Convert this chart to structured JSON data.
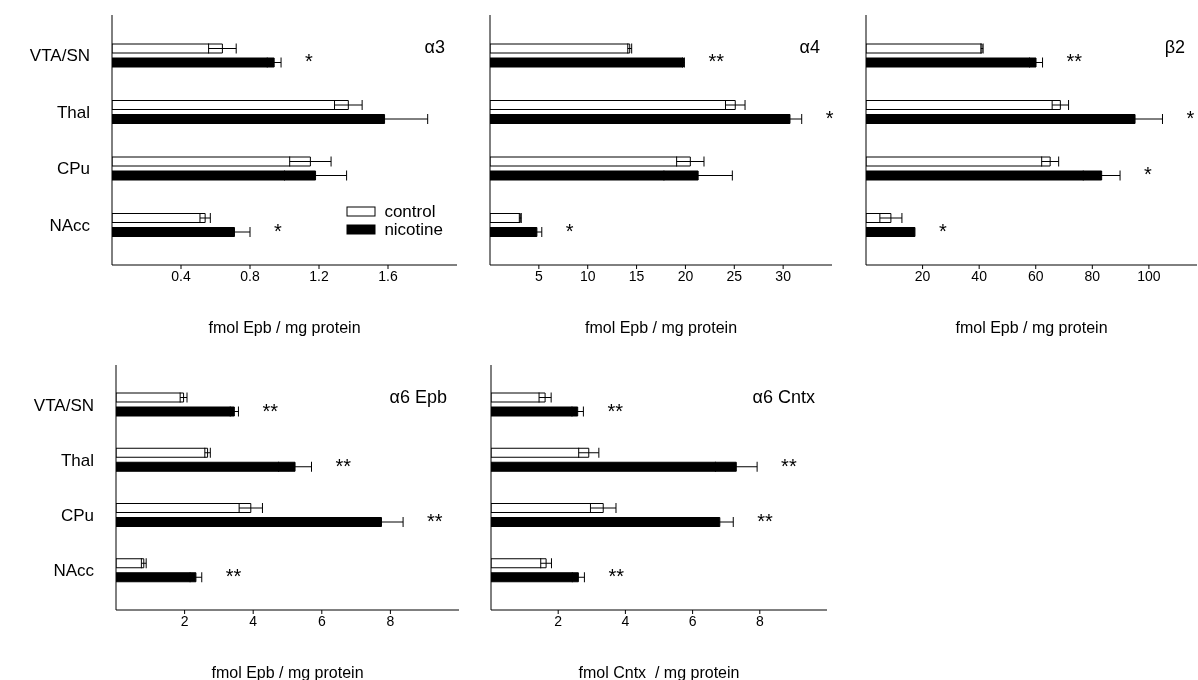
{
  "chart_data": [
    {
      "type": "bar",
      "orientation": "horizontal",
      "title": "α3",
      "xlabel": "fmol Epb / mg protein",
      "categories": [
        "VTA/SN",
        "Thal",
        "CPu",
        "NAcc"
      ],
      "series": [
        {
          "name": "control",
          "color": "#ffffff",
          "values": [
            0.64,
            1.37,
            1.15,
            0.54
          ],
          "errors": [
            0.08,
            0.08,
            0.12,
            0.03
          ]
        },
        {
          "name": "nicotine",
          "color": "#000000",
          "values": [
            0.94,
            1.58,
            1.18,
            0.71
          ],
          "errors": [
            0.04,
            0.25,
            0.18,
            0.09
          ]
        }
      ],
      "xlim": [
        0,
        2.0
      ],
      "xticks": [
        0.4,
        0.8,
        1.2,
        1.6
      ],
      "legend": "bottom right",
      "annotations": [
        {
          "text": "*",
          "x": 0.94,
          "y": "VTA/SN"
        },
        {
          "text": "*",
          "x": 0.71,
          "y": "NAcc"
        }
      ]
    },
    {
      "type": "bar",
      "orientation": "horizontal",
      "title": "α4",
      "xlabel": "fmol Epb / mg protein",
      "categories": [
        "VTA/SN",
        "Thal",
        "CPu",
        "NAcc"
      ],
      "series": [
        {
          "color": "#ffffff",
          "values": [
            14.3,
            25.1,
            20.5,
            3.1
          ],
          "errors": [
            0.2,
            1.0,
            1.4,
            0.1
          ]
        },
        {
          "color": "#000000",
          "values": [
            19.8,
            30.7,
            21.3,
            4.8
          ],
          "errors": [
            0.1,
            1.2,
            3.5,
            0.5
          ]
        }
      ],
      "xlim": [
        0,
        35
      ],
      "xticks": [
        5,
        10,
        15,
        20,
        25,
        30
      ],
      "tick_labels": "x",
      "annotations": [
        {
          "text": "**",
          "x": 19.8,
          "y": "VTA/SN"
        },
        {
          "text": "*",
          "x": 30.7,
          "y": "Thal"
        },
        {
          "text": "*",
          "x": 4.8,
          "y": "NAcc"
        }
      ]
    },
    {
      "type": "bar",
      "orientation": "horizontal",
      "title": "β2",
      "xlabel": "fmol Epb / mg protein",
      "categories": [
        "VTA/SN",
        "Thal",
        "CPu",
        "NAcc"
      ],
      "series": [
        {
          "color": "#ffffff",
          "values": [
            41,
            68.7,
            65.1,
            8.8
          ],
          "errors": [
            0.4,
            2.9,
            3.0,
            3.9
          ]
        },
        {
          "color": "#000000",
          "values": [
            60.1,
            95.1,
            83.3,
            17.3
          ],
          "errors": [
            2.3,
            9.7,
            6.5,
            null
          ]
        }
      ],
      "xlim": [
        0,
        117
      ],
      "xticks": [
        20,
        40,
        60,
        80,
        100
      ],
      "tick_labels": "x",
      "annotations": [
        {
          "text": "**",
          "x": 60.1,
          "y": "VTA/SN"
        },
        {
          "text": "*",
          "x": 95.1,
          "y": "Thal"
        },
        {
          "text": "*",
          "x": 83.3,
          "y": "CPu"
        },
        {
          "text": "*",
          "x": 17.3,
          "y": "NAcc"
        }
      ]
    },
    {
      "type": "bar",
      "orientation": "horizontal",
      "title": "α6 Epb",
      "xlabel": "fmol Epb / mg protein",
      "categories": [
        "VTA/SN",
        "Thal",
        "CPu",
        "NAcc"
      ],
      "series": [
        {
          "color": "#ffffff",
          "values": [
            1.97,
            2.67,
            3.93,
            0.81
          ],
          "errors": [
            0.1,
            0.08,
            0.34,
            0.07
          ]
        },
        {
          "color": "#000000",
          "values": [
            3.45,
            5.22,
            7.74,
            2.33
          ],
          "errors": [
            0.12,
            0.48,
            0.63,
            0.17
          ]
        }
      ],
      "xlim": [
        0,
        10
      ],
      "xticks": [
        2,
        4,
        6,
        8
      ],
      "annotations": [
        {
          "text": "**",
          "x": 3.45,
          "y": "VTA/SN"
        },
        {
          "text": "**",
          "x": 5.22,
          "y": "Thal"
        },
        {
          "text": "**",
          "x": 7.74,
          "y": "CPu"
        },
        {
          "text": "**",
          "x": 2.33,
          "y": "NAcc"
        }
      ]
    },
    {
      "type": "bar",
      "orientation": "horizontal",
      "title": "α6 Cntx",
      "xlabel": "fmol Cntx  / mg protein",
      "categories": [
        "VTA/SN",
        "Thal",
        "CPu",
        "NAcc"
      ],
      "series": [
        {
          "color": "#ffffff",
          "values": [
            1.61,
            2.91,
            3.34,
            1.64
          ],
          "errors": [
            0.18,
            0.3,
            0.38,
            0.16
          ]
        },
        {
          "color": "#000000",
          "values": [
            2.58,
            7.3,
            6.81,
            2.6
          ],
          "errors": [
            0.17,
            0.62,
            0.4,
            0.18
          ]
        }
      ],
      "xlim": [
        0,
        10
      ],
      "xticks": [
        2,
        4,
        6,
        8
      ],
      "tick_labels": "x",
      "annotations": [
        {
          "text": "**",
          "x": 2.58,
          "y": "VTA/SN"
        },
        {
          "text": "**",
          "x": 7.3,
          "y": "Thal"
        },
        {
          "text": "**",
          "x": 6.81,
          "y": "CPu"
        },
        {
          "text": "**",
          "x": 2.6,
          "y": "NAcc"
        }
      ]
    }
  ]
}
